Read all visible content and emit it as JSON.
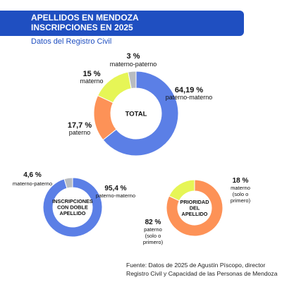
{
  "header": {
    "title_line1": "APELLIDOS EN MENDOZA",
    "title_line2": "INSCRIPCIONES EN 2025",
    "subtitle": "Datos del Registro Civil"
  },
  "chart_data": [
    {
      "type": "pie",
      "center_label": [
        "TOTAL"
      ],
      "slices": [
        {
          "pct_label": "64,19 %",
          "label": [
            "paterno-materno"
          ],
          "value": 64.19,
          "color": "#5b7fe6"
        },
        {
          "pct_label": "17,7 %",
          "label": [
            "paterno"
          ],
          "value": 17.7,
          "color": "#fd9257"
        },
        {
          "pct_label": "15 %",
          "label": [
            "materno"
          ],
          "value": 15,
          "color": "#e6f556"
        },
        {
          "pct_label": "3 %",
          "label": [
            "materno-paterno"
          ],
          "value": 3,
          "color": "#b8bcc1"
        }
      ]
    },
    {
      "type": "pie",
      "center_label": [
        "INSCRIPCIONES",
        "CON DOBLE",
        "APELLIDO"
      ],
      "slices": [
        {
          "pct_label": "95,4 %",
          "label": [
            "paterno-materno"
          ],
          "value": 95.4,
          "color": "#5b7fe6"
        },
        {
          "pct_label": "4,6 %",
          "label": [
            "materno-paterno"
          ],
          "value": 4.6,
          "color": "#b8bcc1"
        }
      ]
    },
    {
      "type": "pie",
      "center_label": [
        "PRIORIDAD",
        "DEL",
        "APELLIDO"
      ],
      "slices": [
        {
          "pct_label": "82 %",
          "label": [
            "paterno",
            "(solo o",
            "primero)"
          ],
          "value": 82,
          "color": "#fd9257"
        },
        {
          "pct_label": "18 %",
          "label": [
            "materno",
            "(solo o",
            "primero)"
          ],
          "value": 18,
          "color": "#e6f556"
        }
      ]
    }
  ],
  "footnote": {
    "line1": "Fuente: Datos de 2025 de Agustín Píscopo, director",
    "line2": "Registro Civil y Capacidad de las Personas de Mendoza"
  }
}
